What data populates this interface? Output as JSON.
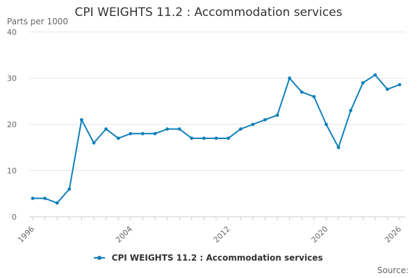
{
  "chart_data": {
    "type": "line",
    "title": "CPI WEIGHTS 11.2 : Accommodation services",
    "ylabel": "Parts per 1000",
    "xlabel": "",
    "ylim": [
      0,
      40
    ],
    "yticks": [
      0,
      10,
      20,
      30,
      40
    ],
    "xticks": [
      1996,
      2004,
      2012,
      2020,
      2026
    ],
    "xlim": [
      1996,
      2026
    ],
    "grid": "horizontal",
    "legend_position": "bottom",
    "color": "#0e7fbb",
    "series": [
      {
        "name": "CPI WEIGHTS 11.2 : Accommodation services",
        "x": [
          1996,
          1997,
          1998,
          1999,
          2000,
          2001,
          2002,
          2003,
          2004,
          2005,
          2006,
          2007,
          2008,
          2009,
          2010,
          2011,
          2012,
          2013,
          2014,
          2015,
          2016,
          2017,
          2018,
          2019,
          2020,
          2021,
          2022,
          2023,
          2024,
          2025,
          2026
        ],
        "values": [
          4,
          4,
          3,
          6,
          21,
          16,
          19,
          17,
          18,
          18,
          18,
          19,
          19,
          17,
          17,
          17,
          17,
          19,
          20,
          21,
          22,
          30,
          27,
          26,
          20,
          15,
          23,
          29,
          30.7,
          27.6,
          28.6
        ]
      }
    ]
  },
  "source_label": "Source:"
}
